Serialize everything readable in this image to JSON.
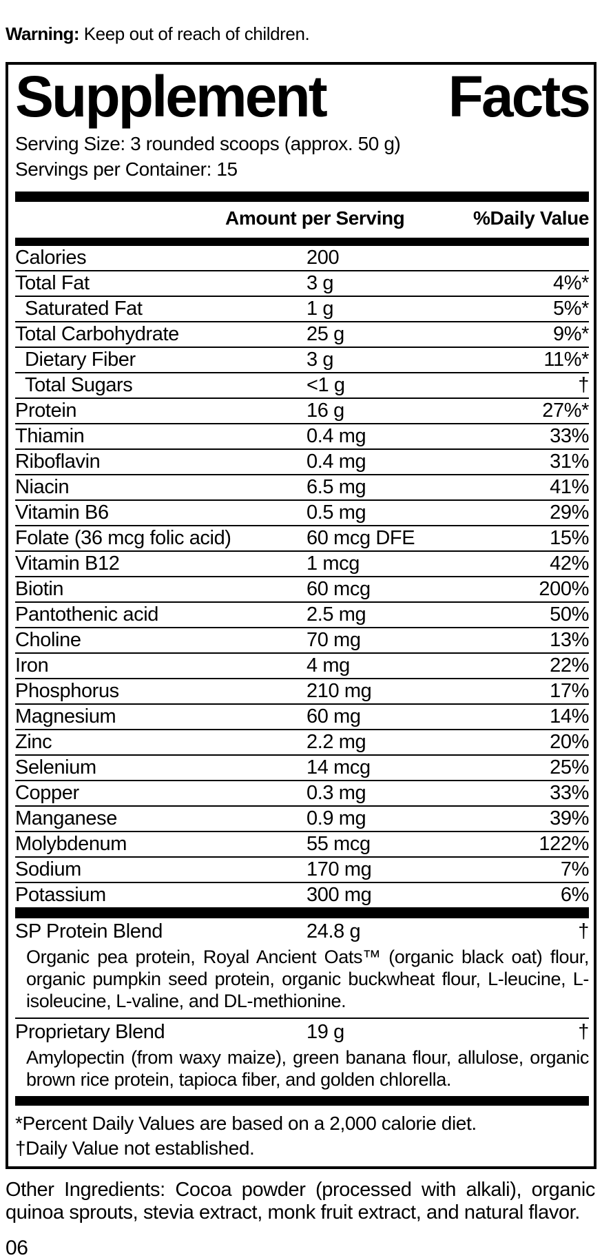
{
  "warning": {
    "label": "Warning:",
    "text": " Keep out of reach of children."
  },
  "panel": {
    "title": {
      "word1": "Supplement",
      "word2": "Facts"
    },
    "serving_size": "Serving Size: 3 rounded scoops (approx. 50 g)",
    "servings_per_container": "Servings per Container: 15",
    "columns": {
      "amount": "Amount per Serving",
      "daily_value": "%Daily Value"
    }
  },
  "nutrients": [
    {
      "name": "Calories",
      "amount": "200",
      "dv": ""
    },
    {
      "name": "Total Fat",
      "amount": "3 g",
      "dv": "4%*"
    },
    {
      "name": "Saturated Fat",
      "amount": "1 g",
      "dv": "5%*",
      "indent": true
    },
    {
      "name": "Total Carbohydrate",
      "amount": "25 g",
      "dv": "9%*"
    },
    {
      "name": "Dietary Fiber",
      "amount": "3 g",
      "dv": "11%*",
      "indent": true
    },
    {
      "name": "Total Sugars",
      "amount": "<1 g",
      "dv": "†",
      "indent": true
    },
    {
      "name": "Protein",
      "amount": "16 g",
      "dv": "27%*"
    },
    {
      "name": "Thiamin",
      "amount": "0.4 mg",
      "dv": "33%"
    },
    {
      "name": "Riboflavin",
      "amount": "0.4 mg",
      "dv": "31%"
    },
    {
      "name": "Niacin",
      "amount": "6.5 mg",
      "dv": "41%"
    },
    {
      "name": "Vitamin B6",
      "amount": "0.5 mg",
      "dv": "29%"
    },
    {
      "name": "Folate (36 mcg folic acid)",
      "amount": "60 mcg DFE",
      "dv": "15%"
    },
    {
      "name": "Vitamin B12",
      "amount": "1 mcg",
      "dv": "42%"
    },
    {
      "name": "Biotin",
      "amount": "60 mcg",
      "dv": "200%"
    },
    {
      "name": "Pantothenic acid",
      "amount": "2.5 mg",
      "dv": "50%"
    },
    {
      "name": "Choline",
      "amount": "70 mg",
      "dv": "13%"
    },
    {
      "name": "Iron",
      "amount": "4 mg",
      "dv": "22%"
    },
    {
      "name": "Phosphorus",
      "amount": "210 mg",
      "dv": "17%"
    },
    {
      "name": "Magnesium",
      "amount": "60 mg",
      "dv": "14%"
    },
    {
      "name": "Zinc",
      "amount": "2.2 mg",
      "dv": "20%"
    },
    {
      "name": "Selenium",
      "amount": "14 mcg",
      "dv": "25%"
    },
    {
      "name": "Copper",
      "amount": "0.3 mg",
      "dv": "33%"
    },
    {
      "name": "Manganese",
      "amount": "0.9 mg",
      "dv": "39%"
    },
    {
      "name": "Molybdenum",
      "amount": "55 mcg",
      "dv": "122%"
    },
    {
      "name": "Sodium",
      "amount": "170 mg",
      "dv": "7%"
    },
    {
      "name": "Potassium",
      "amount": "300 mg",
      "dv": "6%"
    }
  ],
  "blends": [
    {
      "name": "SP Protein Blend",
      "amount": "24.8 g",
      "dv": "†",
      "description": "Organic pea protein, Royal Ancient Oats™ (organic black oat) flour, organic pumpkin seed protein, organic buckwheat flour, L-leucine, L-isoleucine, L-valine, and DL-methionine."
    },
    {
      "name": "Proprietary Blend",
      "amount": "19 g",
      "dv": "†",
      "description": "Amylopectin (from waxy maize), green banana flour, allulose, organic brown rice protein, tapioca fiber, and golden chlorella."
    }
  ],
  "footnotes": {
    "percent": "*Percent Daily Values are based on a 2,000 calorie diet.",
    "dagger": "†Daily Value not established."
  },
  "other_ingredients": "Other Ingredients: Cocoa powder (processed with alkali), organic quinoa sprouts, stevia extract, monk fruit extract, and natural flavor.",
  "page_number": "06",
  "colors": {
    "text": "#000000",
    "background": "#ffffff"
  }
}
